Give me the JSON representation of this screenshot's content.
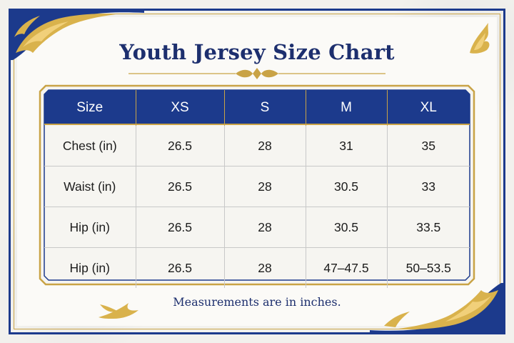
{
  "title": "Youth Jersey Size Chart",
  "table": {
    "headers": [
      "Size",
      "XS",
      "S",
      "M",
      "XL"
    ],
    "rows": [
      [
        "Chest (in)",
        "26.5",
        "28",
        "31",
        "35"
      ],
      [
        "Waist (in)",
        "26.5",
        "28",
        "30.5",
        "33"
      ],
      [
        "Hip (in)",
        "26.5",
        "28",
        "30.5",
        "33.5"
      ],
      [
        "Hip (in)",
        "26.5",
        "28",
        "47–47.5",
        "50–53.5"
      ]
    ]
  },
  "note": "Measurements are in inches.",
  "colors": {
    "navy": "#1c3a8c",
    "gold": "#c9a346",
    "title": "#1d2f6e"
  },
  "icons": [
    "corner-flame-ornament-icon",
    "title-flourish-icon"
  ]
}
